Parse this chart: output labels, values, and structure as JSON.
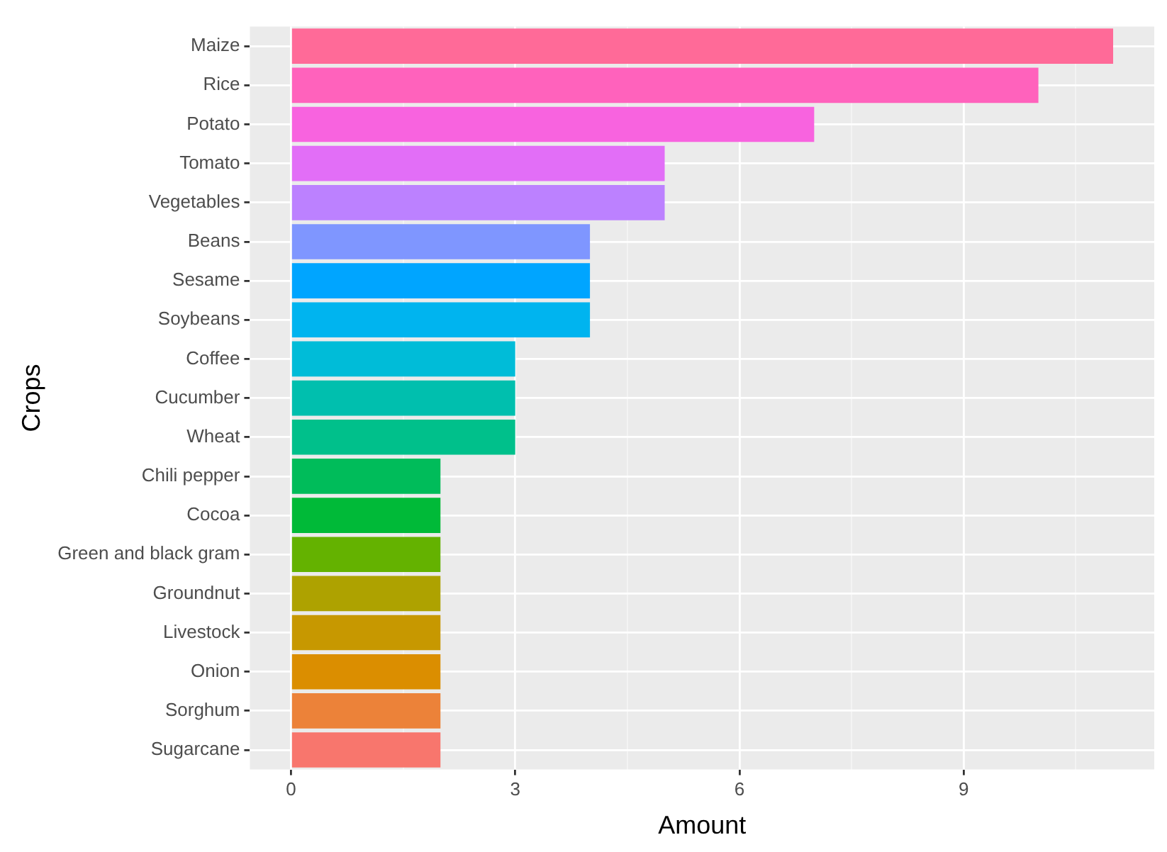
{
  "chart_data": {
    "type": "bar",
    "orientation": "horizontal",
    "xlabel": "Amount",
    "ylabel": "Crops",
    "categories": [
      "Maize",
      "Rice",
      "Potato",
      "Tomato",
      "Vegetables",
      "Beans",
      "Sesame",
      "Soybeans",
      "Coffee",
      "Cucumber",
      "Wheat",
      "Chili pepper",
      "Cocoa",
      "Green and black gram",
      "Groundnut",
      "Livestock",
      "Onion",
      "Sorghum",
      "Sugarcane"
    ],
    "values": [
      11,
      10,
      7,
      5,
      5,
      4,
      4,
      4,
      3,
      3,
      3,
      2,
      2,
      2,
      2,
      2,
      2,
      2,
      2
    ],
    "colors": [
      "#ff6a98",
      "#ff62bc",
      "#f863df",
      "#e26ef7",
      "#bc81ff",
      "#7f96ff",
      "#00a5ff",
      "#00b4ef",
      "#00bcd8",
      "#00bfae",
      "#00c08b",
      "#00bc5a",
      "#00ba38",
      "#64b200",
      "#aea200",
      "#c79800",
      "#db8e00",
      "#ec8239",
      "#f8766d"
    ],
    "xlim": [
      -0.55,
      11.55
    ],
    "xticks": [
      0,
      {
        "value": 1.5,
        "label": null
      },
      3,
      {
        "value": 4.5,
        "label": null
      },
      6,
      {
        "value": 7.5,
        "label": null
      },
      9,
      {
        "value": 10.5,
        "label": null
      }
    ],
    "grid": true,
    "legend": false
  }
}
